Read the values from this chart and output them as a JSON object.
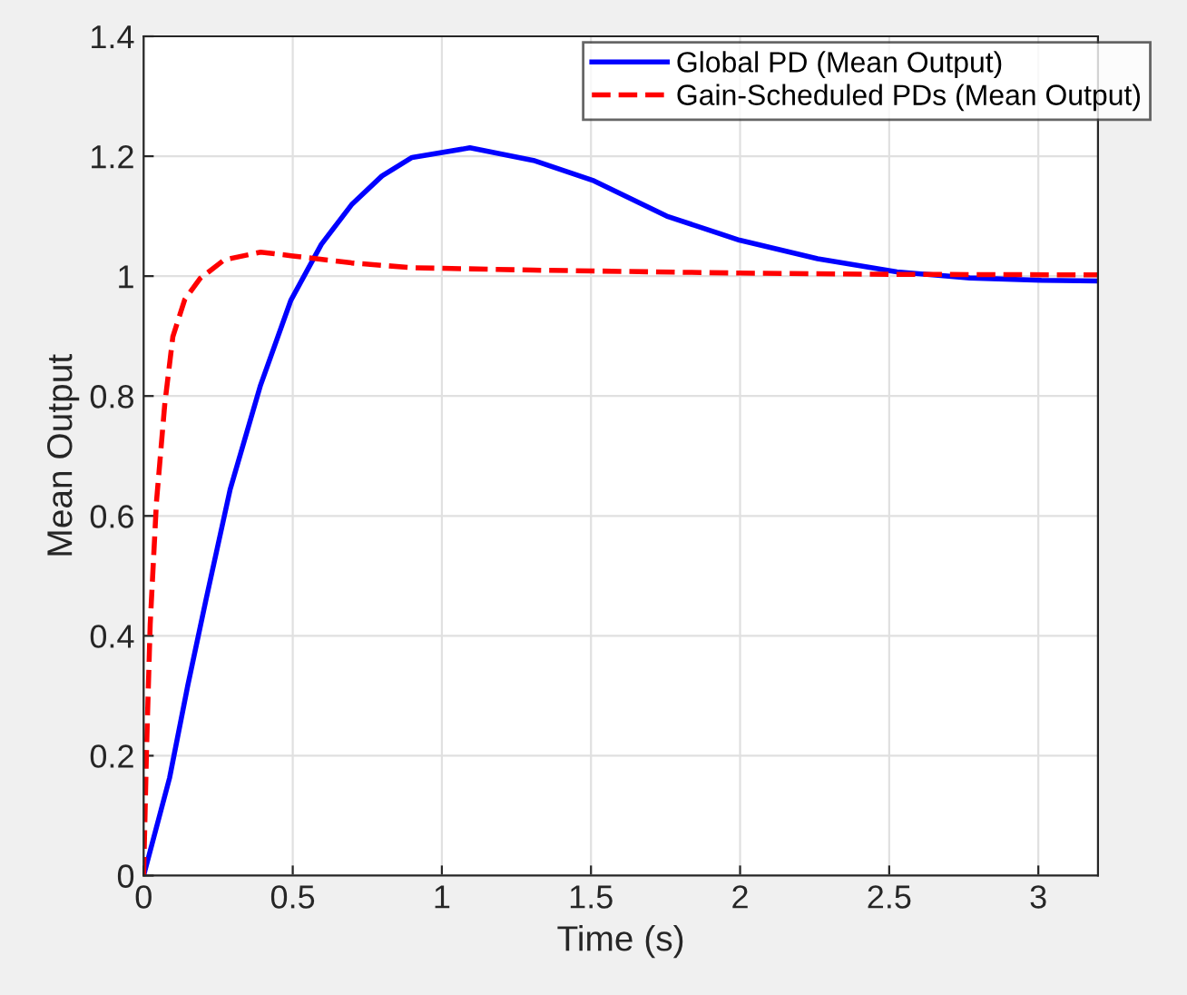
{
  "chart_data": {
    "type": "line",
    "xlabel": "Time (s)",
    "ylabel": "Mean Output",
    "xlim": [
      0,
      3.2
    ],
    "ylim": [
      0,
      1.4
    ],
    "xticks": [
      0,
      0.5,
      1,
      1.5,
      2,
      2.5,
      3
    ],
    "yticks": [
      0,
      0.2,
      0.4,
      0.6,
      0.8,
      1,
      1.2,
      1.4
    ],
    "grid": true,
    "legend": "top right",
    "series": [
      {
        "name": "Global PD (Mean Output)",
        "color": "#0000ff",
        "line_style": "solid",
        "x": [
          0,
          0.087,
          0.148,
          0.209,
          0.29,
          0.392,
          0.494,
          0.596,
          0.697,
          0.799,
          0.9,
          1.094,
          1.307,
          1.51,
          1.754,
          1.998,
          2.26,
          2.526,
          2.77,
          3.01,
          3.2
        ],
        "values": [
          0,
          0.163,
          0.317,
          0.46,
          0.644,
          0.818,
          0.96,
          1.053,
          1.119,
          1.167,
          1.198,
          1.214,
          1.193,
          1.159,
          1.1,
          1.06,
          1.029,
          1.007,
          0.997,
          0.993,
          0.992
        ]
      },
      {
        "name": "Gain-Scheduled PDs (Mean Output)",
        "color": "#ff0000",
        "line_style": "dashed",
        "x": [
          0,
          0.01,
          0.022,
          0.043,
          0.071,
          0.098,
          0.138,
          0.189,
          0.27,
          0.392,
          0.494,
          0.697,
          0.9,
          1.307,
          2.0,
          2.5,
          3.2
        ],
        "values": [
          0,
          0.215,
          0.419,
          0.623,
          0.787,
          0.899,
          0.961,
          0.996,
          1.027,
          1.04,
          1.034,
          1.022,
          1.014,
          1.01,
          1.005,
          1.003,
          1.002
        ]
      }
    ]
  }
}
